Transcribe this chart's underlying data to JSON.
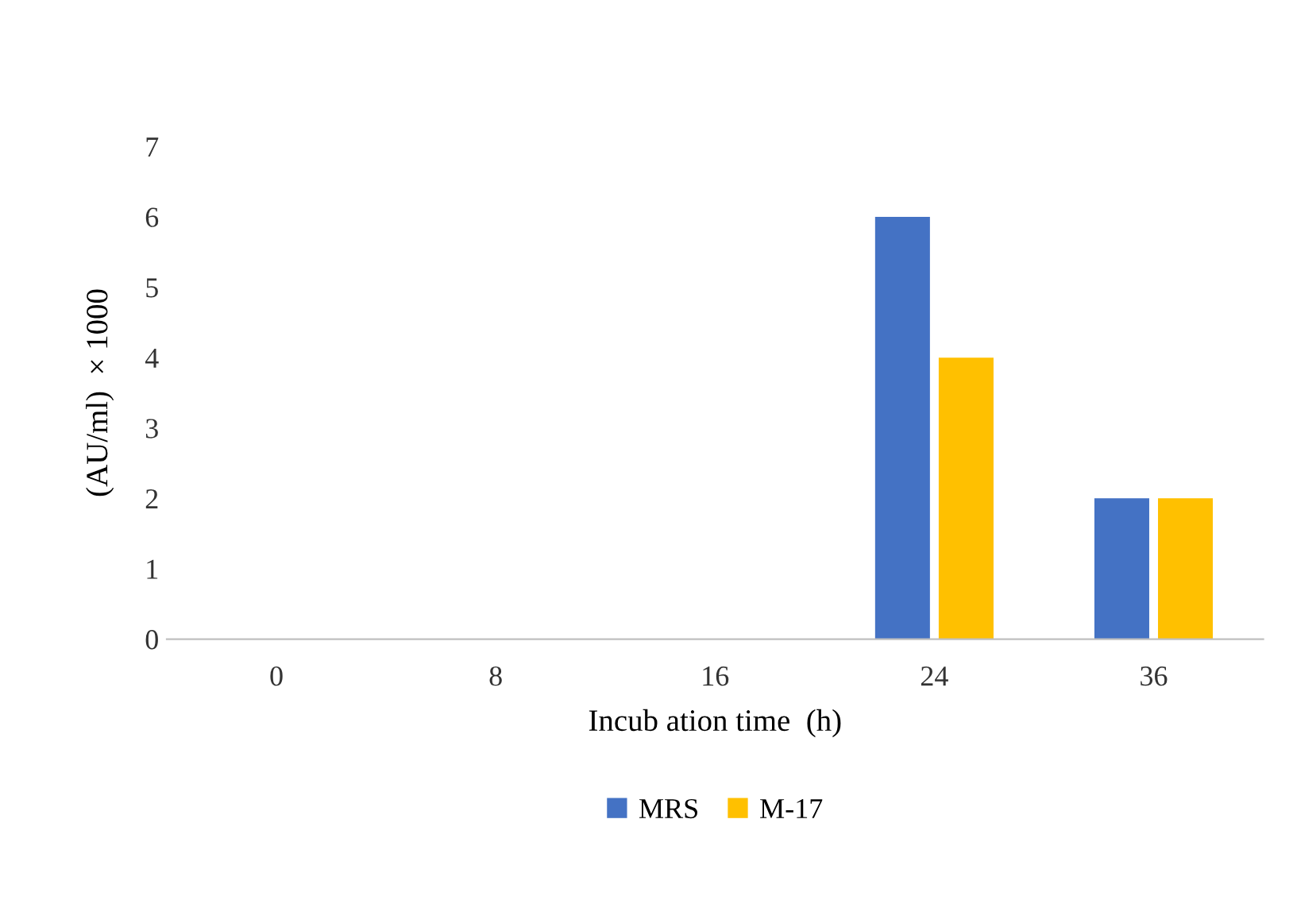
{
  "chart_data": {
    "type": "bar",
    "xlabel": "Incub ation time  (h)",
    "ylabel": "(AU/ml)  × 1000",
    "categories": [
      "0",
      "8",
      "16",
      "24",
      "36"
    ],
    "series": [
      {
        "name": "MRS",
        "color": "#4472c4",
        "values": [
          0,
          0,
          0,
          6,
          2
        ]
      },
      {
        "name": "M-17",
        "color": "#ffc000",
        "values": [
          0,
          0,
          0,
          4,
          2
        ]
      }
    ],
    "ylim": [
      0,
      7
    ],
    "yticks": [
      0,
      1,
      2,
      3,
      4,
      5,
      6,
      7
    ],
    "grid": false,
    "legend": "bottom"
  }
}
